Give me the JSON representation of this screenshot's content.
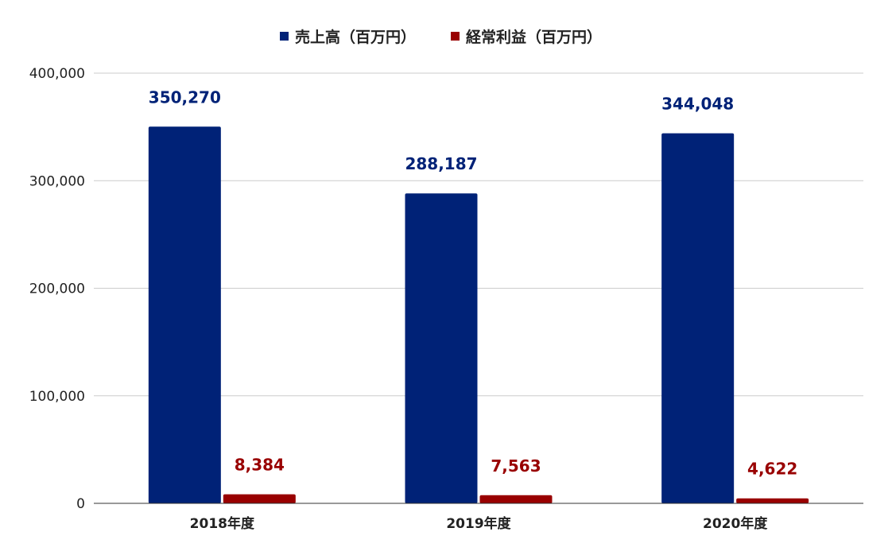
{
  "chart_data": {
    "type": "bar",
    "categories": [
      "2018年度",
      "2019年度",
      "2020年度"
    ],
    "series": [
      {
        "name": "売上高（百万円）",
        "values": [
          350270,
          288187,
          344048
        ],
        "labels": [
          "350,270",
          "288,187",
          "344,048"
        ],
        "color": "#002277"
      },
      {
        "name": "経常利益（百万円）",
        "values": [
          8384,
          7563,
          4622
        ],
        "labels": [
          "8,384",
          "7,563",
          "4,622"
        ],
        "color": "#990000"
      }
    ],
    "y_ticks": [
      "0",
      "100,000",
      "200,000",
      "300,000",
      "400,000"
    ],
    "ylim": [
      0,
      400000
    ],
    "grid": true,
    "legend_position": "top"
  }
}
